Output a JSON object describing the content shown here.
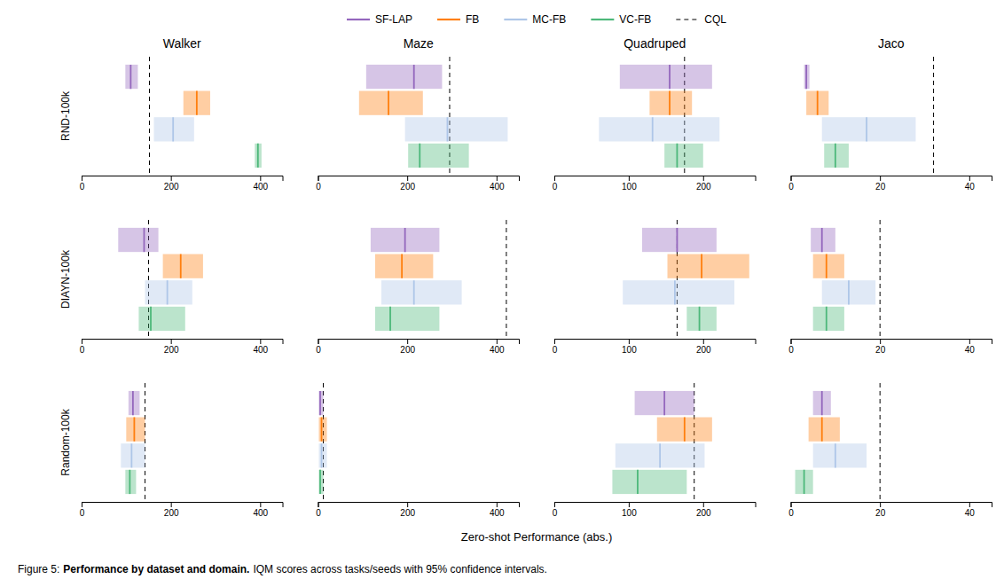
{
  "chart_data": {
    "type": "interval",
    "orientation": "horizontal",
    "xlabel": "Zero-shot Performance (abs.)",
    "caption": {
      "label": "Figure 5:",
      "title": "Performance by dataset and domain.",
      "text": "IQM scores across tasks/seeds with 95% confidence intervals."
    },
    "legend": "top",
    "columns": [
      "Walker",
      "Maze",
      "Quadruped",
      "Jaco"
    ],
    "rows": [
      "RND-100k",
      "DIAYN-100k",
      "Random-100k"
    ],
    "series": [
      {
        "name": "SF-LAP",
        "color": "#9467bd"
      },
      {
        "name": "FB",
        "color": "#ff7f0e"
      },
      {
        "name": "MC-FB",
        "color": "#aec6e8"
      },
      {
        "name": "VC-FB",
        "color": "#4db87a"
      }
    ],
    "reference": {
      "name": "CQL",
      "color": "black",
      "line_style": "dashed"
    },
    "panels": [
      [
        {
          "xlim": [
            0,
            450
          ],
          "xticks": [
            0,
            200,
            400
          ],
          "median": [
            110,
            258,
            205,
            395
          ],
          "lo": [
            98,
            228,
            162,
            388
          ],
          "hi": [
            126,
            288,
            252,
            403
          ],
          "reference": 152
        },
        {
          "xlim": [
            0,
            450
          ],
          "xticks": [
            0,
            200,
            400
          ],
          "median": [
            215,
            158,
            290,
            228
          ],
          "lo": [
            108,
            92,
            195,
            202
          ],
          "hi": [
            278,
            235,
            425,
            338
          ],
          "reference": 295
        },
        {
          "xlim": [
            0,
            270
          ],
          "xticks": [
            0,
            100,
            200
          ],
          "median": [
            155,
            155,
            132,
            165
          ],
          "lo": [
            88,
            128,
            60,
            148
          ],
          "hi": [
            212,
            185,
            222,
            200
          ],
          "reference": 175
        },
        {
          "xlim": [
            0,
            45
          ],
          "xticks": [
            0,
            20,
            40
          ],
          "median": [
            3.5,
            6,
            17,
            10
          ],
          "lo": [
            3.0,
            3.5,
            7,
            7.5
          ],
          "hi": [
            4.2,
            8.5,
            28,
            13
          ],
          "reference": 32
        }
      ],
      [
        {
          "xlim": [
            0,
            450
          ],
          "xticks": [
            0,
            200,
            400
          ],
          "median": [
            140,
            222,
            192,
            155
          ],
          "lo": [
            82,
            182,
            142,
            128
          ],
          "hi": [
            172,
            272,
            248,
            232
          ],
          "reference": 150
        },
        {
          "xlim": [
            0,
            450
          ],
          "xticks": [
            0,
            200,
            400
          ],
          "median": [
            195,
            188,
            215,
            162
          ],
          "lo": [
            118,
            128,
            142,
            128
          ],
          "hi": [
            272,
            258,
            322,
            272
          ],
          "reference": 422
        },
        {
          "xlim": [
            0,
            270
          ],
          "xticks": [
            0,
            100,
            200
          ],
          "median": [
            165,
            198,
            162,
            195
          ],
          "lo": [
            118,
            152,
            92,
            178
          ],
          "hi": [
            218,
            262,
            242,
            218
          ],
          "reference": 165
        },
        {
          "xlim": [
            0,
            45
          ],
          "xticks": [
            0,
            20,
            40
          ],
          "median": [
            7,
            8,
            13,
            8
          ],
          "lo": [
            4.5,
            5,
            7,
            5
          ],
          "hi": [
            10,
            12,
            19,
            12
          ],
          "reference": 20
        }
      ],
      [
        {
          "xlim": [
            0,
            450
          ],
          "xticks": [
            0,
            200,
            400
          ],
          "median": [
            115,
            118,
            112,
            108
          ],
          "lo": [
            105,
            100,
            88,
            98
          ],
          "hi": [
            130,
            142,
            142,
            122
          ],
          "reference": 142
        },
        {
          "xlim": [
            0,
            450
          ],
          "xticks": [
            0,
            200,
            400
          ],
          "median": [
            5,
            8,
            8,
            5
          ],
          "lo": [
            2,
            2,
            2,
            2
          ],
          "hi": [
            12,
            20,
            20,
            12
          ],
          "reference": 12
        },
        {
          "xlim": [
            0,
            270
          ],
          "xticks": [
            0,
            100,
            200
          ],
          "median": [
            148,
            175,
            142,
            112
          ],
          "lo": [
            108,
            138,
            82,
            78
          ],
          "hi": [
            188,
            212,
            202,
            178
          ],
          "reference": 188
        },
        {
          "xlim": [
            0,
            45
          ],
          "xticks": [
            0,
            20,
            40
          ],
          "median": [
            7,
            7,
            10,
            3
          ],
          "lo": [
            5,
            4,
            5,
            1
          ],
          "hi": [
            9,
            11,
            17,
            5
          ],
          "reference": 20
        }
      ]
    ]
  }
}
